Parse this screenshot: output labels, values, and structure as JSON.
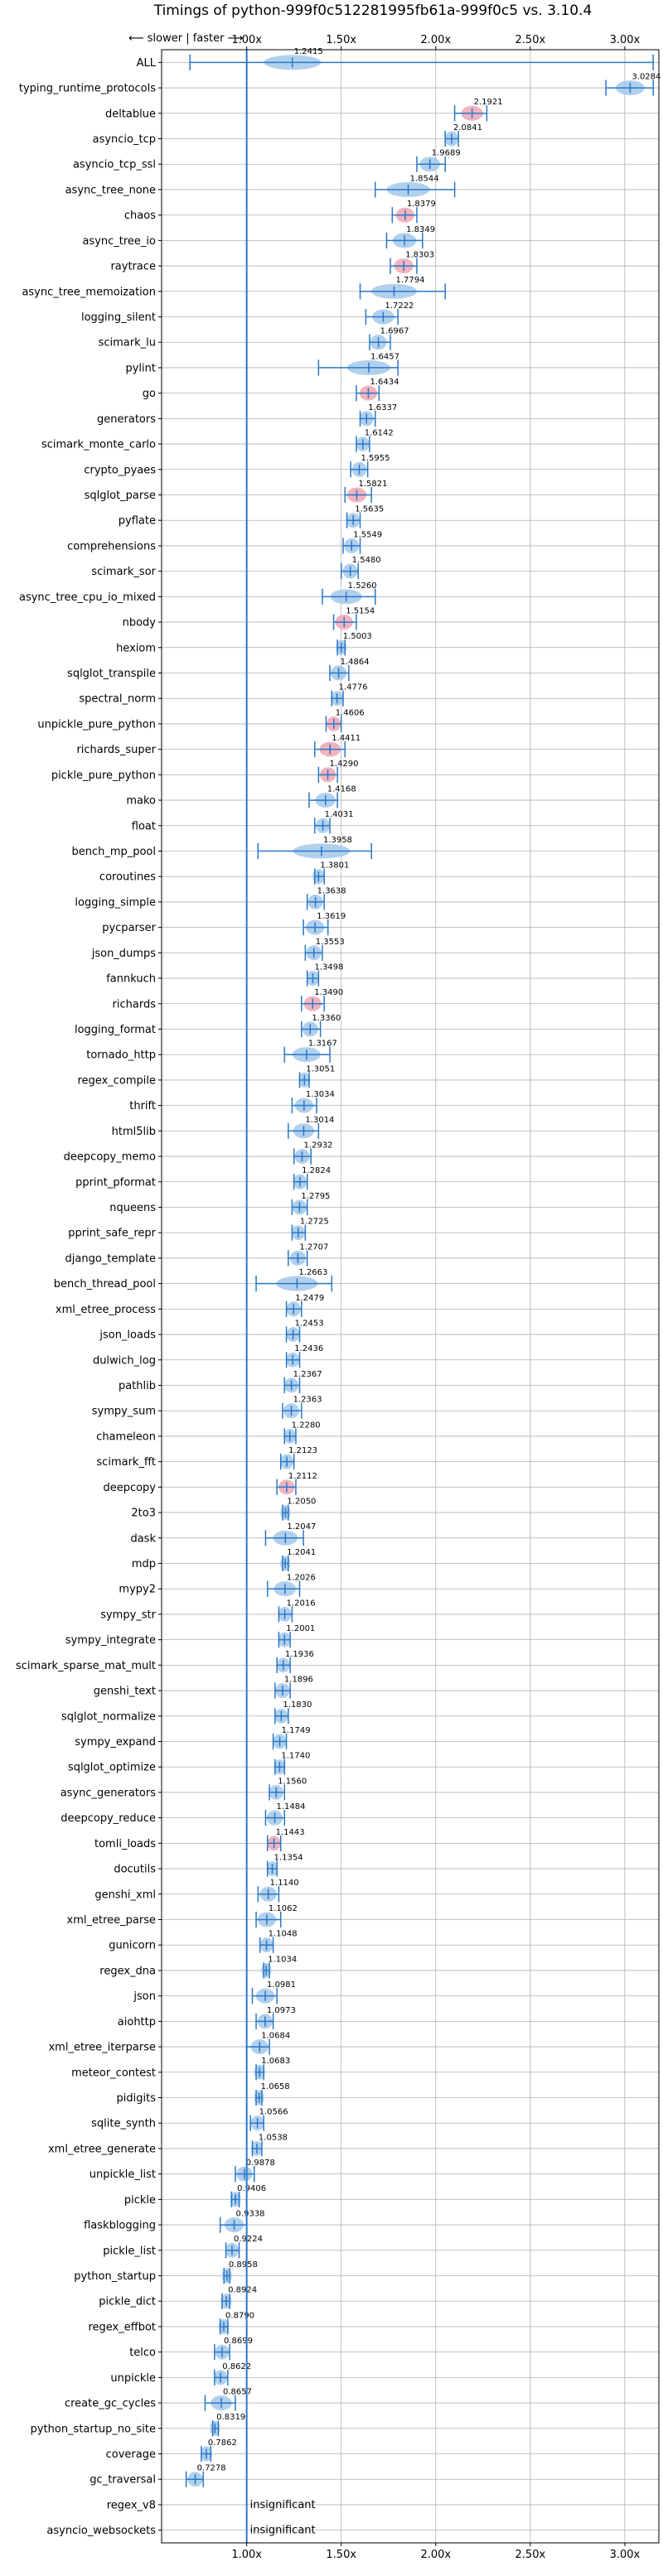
{
  "chart_data": {
    "type": "violin",
    "title": "Timings of python-999f0c512281995fb61a-999f0c5 vs. 3.10.4",
    "direction_label": "⟵ slower | faster ⟶",
    "xlim": [
      0.55,
      3.18
    ],
    "xticks": [
      1.0,
      1.5,
      2.0,
      2.5,
      3.0
    ],
    "xtick_labels": [
      "1.00x",
      "1.50x",
      "2.00x",
      "2.50x",
      "3.00x"
    ],
    "reference_line": 1.0,
    "colors": {
      "significant": "#2978c8",
      "violin_fill": "#a3c8ea",
      "slower_fill": "#f1a6b4",
      "grid": "#b0b0b0"
    },
    "benchmarks": [
      {
        "name": "ALL",
        "value": 1.2415,
        "label": "1.2415",
        "wl": 0.7,
        "wh": 3.15,
        "slow": false
      },
      {
        "name": "typing_runtime_protocols",
        "value": 3.0284,
        "label": "3.0284",
        "wl": 2.9,
        "wh": 3.15,
        "slow": false
      },
      {
        "name": "deltablue",
        "value": 2.1921,
        "label": "2.1921",
        "wl": 2.1,
        "wh": 2.27,
        "slow": true
      },
      {
        "name": "asyncio_tcp",
        "value": 2.0841,
        "label": "2.0841",
        "wl": 2.05,
        "wh": 2.12,
        "slow": false
      },
      {
        "name": "asyncio_tcp_ssl",
        "value": 1.9689,
        "label": "1.9689",
        "wl": 1.9,
        "wh": 2.05,
        "slow": false
      },
      {
        "name": "async_tree_none",
        "value": 1.8544,
        "label": "1.8544",
        "wl": 1.68,
        "wh": 2.1,
        "slow": false
      },
      {
        "name": "chaos",
        "value": 1.8379,
        "label": "1.8379",
        "wl": 1.77,
        "wh": 1.9,
        "slow": true
      },
      {
        "name": "async_tree_io",
        "value": 1.8349,
        "label": "1.8349",
        "wl": 1.74,
        "wh": 1.93,
        "slow": false
      },
      {
        "name": "raytrace",
        "value": 1.8303,
        "label": "1.8303",
        "wl": 1.76,
        "wh": 1.9,
        "slow": true
      },
      {
        "name": "async_tree_memoization",
        "value": 1.7794,
        "label": "1.7794",
        "wl": 1.6,
        "wh": 2.05,
        "slow": false
      },
      {
        "name": "logging_silent",
        "value": 1.7222,
        "label": "1.7222",
        "wl": 1.63,
        "wh": 1.8,
        "slow": false
      },
      {
        "name": "scimark_lu",
        "value": 1.6967,
        "label": "1.6967",
        "wl": 1.65,
        "wh": 1.76,
        "slow": false
      },
      {
        "name": "pylint",
        "value": 1.6457,
        "label": "1.6457",
        "wl": 1.38,
        "wh": 1.8,
        "slow": false
      },
      {
        "name": "go",
        "value": 1.6434,
        "label": "1.6434",
        "wl": 1.58,
        "wh": 1.7,
        "slow": true
      },
      {
        "name": "generators",
        "value": 1.6337,
        "label": "1.6337",
        "wl": 1.6,
        "wh": 1.68,
        "slow": false
      },
      {
        "name": "scimark_monte_carlo",
        "value": 1.6142,
        "label": "1.6142",
        "wl": 1.58,
        "wh": 1.65,
        "slow": false
      },
      {
        "name": "crypto_pyaes",
        "value": 1.5955,
        "label": "1.5955",
        "wl": 1.55,
        "wh": 1.64,
        "slow": false
      },
      {
        "name": "sqlglot_parse",
        "value": 1.5821,
        "label": "1.5821",
        "wl": 1.52,
        "wh": 1.66,
        "slow": true
      },
      {
        "name": "pyflate",
        "value": 1.5635,
        "label": "1.5635",
        "wl": 1.53,
        "wh": 1.6,
        "slow": false
      },
      {
        "name": "comprehensions",
        "value": 1.5549,
        "label": "1.5549",
        "wl": 1.51,
        "wh": 1.6,
        "slow": false
      },
      {
        "name": "scimark_sor",
        "value": 1.548,
        "label": "1.5480",
        "wl": 1.5,
        "wh": 1.59,
        "slow": false
      },
      {
        "name": "async_tree_cpu_io_mixed",
        "value": 1.526,
        "label": "1.5260",
        "wl": 1.4,
        "wh": 1.68,
        "slow": false
      },
      {
        "name": "nbody",
        "value": 1.5154,
        "label": "1.5154",
        "wl": 1.46,
        "wh": 1.58,
        "slow": true
      },
      {
        "name": "hexiom",
        "value": 1.5003,
        "label": "1.5003",
        "wl": 1.48,
        "wh": 1.52,
        "slow": false
      },
      {
        "name": "sqlglot_transpile",
        "value": 1.4864,
        "label": "1.4864",
        "wl": 1.44,
        "wh": 1.54,
        "slow": false
      },
      {
        "name": "spectral_norm",
        "value": 1.4776,
        "label": "1.4776",
        "wl": 1.45,
        "wh": 1.51,
        "slow": false
      },
      {
        "name": "unpickle_pure_python",
        "value": 1.4606,
        "label": "1.4606",
        "wl": 1.42,
        "wh": 1.5,
        "slow": true
      },
      {
        "name": "richards_super",
        "value": 1.4411,
        "label": "1.4411",
        "wl": 1.36,
        "wh": 1.52,
        "slow": true
      },
      {
        "name": "pickle_pure_python",
        "value": 1.429,
        "label": "1.4290",
        "wl": 1.38,
        "wh": 1.48,
        "slow": true
      },
      {
        "name": "mako",
        "value": 1.4168,
        "label": "1.4168",
        "wl": 1.33,
        "wh": 1.48,
        "slow": false
      },
      {
        "name": "float",
        "value": 1.4031,
        "label": "1.4031",
        "wl": 1.36,
        "wh": 1.44,
        "slow": false
      },
      {
        "name": "bench_mp_pool",
        "value": 1.3958,
        "label": "1.3958",
        "wl": 1.06,
        "wh": 1.66,
        "slow": false
      },
      {
        "name": "coroutines",
        "value": 1.3801,
        "label": "1.3801",
        "wl": 1.36,
        "wh": 1.41,
        "slow": false
      },
      {
        "name": "logging_simple",
        "value": 1.3638,
        "label": "1.3638",
        "wl": 1.32,
        "wh": 1.41,
        "slow": false
      },
      {
        "name": "pycparser",
        "value": 1.3619,
        "label": "1.3619",
        "wl": 1.3,
        "wh": 1.43,
        "slow": false
      },
      {
        "name": "json_dumps",
        "value": 1.3553,
        "label": "1.3553",
        "wl": 1.31,
        "wh": 1.4,
        "slow": false
      },
      {
        "name": "fannkuch",
        "value": 1.3498,
        "label": "1.3498",
        "wl": 1.32,
        "wh": 1.38,
        "slow": false
      },
      {
        "name": "richards",
        "value": 1.349,
        "label": "1.3490",
        "wl": 1.29,
        "wh": 1.41,
        "slow": true
      },
      {
        "name": "logging_format",
        "value": 1.336,
        "label": "1.3360",
        "wl": 1.29,
        "wh": 1.39,
        "slow": false
      },
      {
        "name": "tornado_http",
        "value": 1.3167,
        "label": "1.3167",
        "wl": 1.2,
        "wh": 1.44,
        "slow": false
      },
      {
        "name": "regex_compile",
        "value": 1.3051,
        "label": "1.3051",
        "wl": 1.28,
        "wh": 1.33,
        "slow": false
      },
      {
        "name": "thrift",
        "value": 1.3034,
        "label": "1.3034",
        "wl": 1.24,
        "wh": 1.37,
        "slow": false
      },
      {
        "name": "html5lib",
        "value": 1.3014,
        "label": "1.3014",
        "wl": 1.22,
        "wh": 1.38,
        "slow": false
      },
      {
        "name": "deepcopy_memo",
        "value": 1.2932,
        "label": "1.2932",
        "wl": 1.25,
        "wh": 1.34,
        "slow": false
      },
      {
        "name": "pprint_pformat",
        "value": 1.2824,
        "label": "1.2824",
        "wl": 1.25,
        "wh": 1.32,
        "slow": false
      },
      {
        "name": "nqueens",
        "value": 1.2795,
        "label": "1.2795",
        "wl": 1.24,
        "wh": 1.32,
        "slow": false
      },
      {
        "name": "pprint_safe_repr",
        "value": 1.2725,
        "label": "1.2725",
        "wl": 1.24,
        "wh": 1.31,
        "slow": false
      },
      {
        "name": "django_template",
        "value": 1.2707,
        "label": "1.2707",
        "wl": 1.22,
        "wh": 1.32,
        "slow": false
      },
      {
        "name": "bench_thread_pool",
        "value": 1.2663,
        "label": "1.2663",
        "wl": 1.05,
        "wh": 1.45,
        "slow": false
      },
      {
        "name": "xml_etree_process",
        "value": 1.2479,
        "label": "1.2479",
        "wl": 1.21,
        "wh": 1.29,
        "slow": false
      },
      {
        "name": "json_loads",
        "value": 1.2453,
        "label": "1.2453",
        "wl": 1.21,
        "wh": 1.28,
        "slow": false
      },
      {
        "name": "dulwich_log",
        "value": 1.2436,
        "label": "1.2436",
        "wl": 1.21,
        "wh": 1.28,
        "slow": false
      },
      {
        "name": "pathlib",
        "value": 1.2367,
        "label": "1.2367",
        "wl": 1.2,
        "wh": 1.28,
        "slow": false
      },
      {
        "name": "sympy_sum",
        "value": 1.2363,
        "label": "1.2363",
        "wl": 1.19,
        "wh": 1.29,
        "slow": false
      },
      {
        "name": "chameleon",
        "value": 1.228,
        "label": "1.2280",
        "wl": 1.2,
        "wh": 1.26,
        "slow": false
      },
      {
        "name": "scimark_fft",
        "value": 1.2123,
        "label": "1.2123",
        "wl": 1.18,
        "wh": 1.25,
        "slow": false
      },
      {
        "name": "deepcopy",
        "value": 1.2112,
        "label": "1.2112",
        "wl": 1.16,
        "wh": 1.26,
        "slow": true
      },
      {
        "name": "2to3",
        "value": 1.205,
        "label": "1.2050",
        "wl": 1.19,
        "wh": 1.22,
        "slow": false
      },
      {
        "name": "dask",
        "value": 1.2047,
        "label": "1.2047",
        "wl": 1.1,
        "wh": 1.3,
        "slow": false
      },
      {
        "name": "mdp",
        "value": 1.2041,
        "label": "1.2041",
        "wl": 1.19,
        "wh": 1.22,
        "slow": false
      },
      {
        "name": "mypy2",
        "value": 1.2026,
        "label": "1.2026",
        "wl": 1.11,
        "wh": 1.28,
        "slow": false
      },
      {
        "name": "sympy_str",
        "value": 1.2016,
        "label": "1.2016",
        "wl": 1.17,
        "wh": 1.24,
        "slow": false
      },
      {
        "name": "sympy_integrate",
        "value": 1.2001,
        "label": "1.2001",
        "wl": 1.17,
        "wh": 1.23,
        "slow": false
      },
      {
        "name": "scimark_sparse_mat_mult",
        "value": 1.1936,
        "label": "1.1936",
        "wl": 1.16,
        "wh": 1.23,
        "slow": false
      },
      {
        "name": "genshi_text",
        "value": 1.1896,
        "label": "1.1896",
        "wl": 1.15,
        "wh": 1.23,
        "slow": false
      },
      {
        "name": "sqlglot_normalize",
        "value": 1.183,
        "label": "1.1830",
        "wl": 1.15,
        "wh": 1.22,
        "slow": false
      },
      {
        "name": "sympy_expand",
        "value": 1.1749,
        "label": "1.1749",
        "wl": 1.14,
        "wh": 1.21,
        "slow": false
      },
      {
        "name": "sqlglot_optimize",
        "value": 1.174,
        "label": "1.1740",
        "wl": 1.15,
        "wh": 1.2,
        "slow": false
      },
      {
        "name": "async_generators",
        "value": 1.156,
        "label": "1.1560",
        "wl": 1.12,
        "wh": 1.2,
        "slow": false
      },
      {
        "name": "deepcopy_reduce",
        "value": 1.1484,
        "label": "1.1484",
        "wl": 1.1,
        "wh": 1.2,
        "slow": false
      },
      {
        "name": "tomli_loads",
        "value": 1.1443,
        "label": "1.1443",
        "wl": 1.11,
        "wh": 1.18,
        "slow": true
      },
      {
        "name": "docutils",
        "value": 1.1354,
        "label": "1.1354",
        "wl": 1.11,
        "wh": 1.16,
        "slow": false
      },
      {
        "name": "genshi_xml",
        "value": 1.114,
        "label": "1.1140",
        "wl": 1.06,
        "wh": 1.17,
        "slow": false
      },
      {
        "name": "xml_etree_parse",
        "value": 1.1062,
        "label": "1.1062",
        "wl": 1.05,
        "wh": 1.18,
        "slow": false
      },
      {
        "name": "gunicorn",
        "value": 1.1048,
        "label": "1.1048",
        "wl": 1.07,
        "wh": 1.14,
        "slow": false
      },
      {
        "name": "regex_dna",
        "value": 1.1034,
        "label": "1.1034",
        "wl": 1.09,
        "wh": 1.12,
        "slow": false
      },
      {
        "name": "json",
        "value": 1.0981,
        "label": "1.0981",
        "wl": 1.03,
        "wh": 1.16,
        "slow": false
      },
      {
        "name": "aiohttp",
        "value": 1.0973,
        "label": "1.0973",
        "wl": 1.05,
        "wh": 1.14,
        "slow": false
      },
      {
        "name": "xml_etree_iterparse",
        "value": 1.0684,
        "label": "1.0684",
        "wl": 1.0,
        "wh": 1.12,
        "slow": false
      },
      {
        "name": "meteor_contest",
        "value": 1.0683,
        "label": "1.0683",
        "wl": 1.05,
        "wh": 1.09,
        "slow": false
      },
      {
        "name": "pidigits",
        "value": 1.0658,
        "label": "1.0658",
        "wl": 1.05,
        "wh": 1.08,
        "slow": false
      },
      {
        "name": "sqlite_synth",
        "value": 1.0566,
        "label": "1.0566",
        "wl": 1.02,
        "wh": 1.09,
        "slow": false
      },
      {
        "name": "xml_etree_generate",
        "value": 1.0538,
        "label": "1.0538",
        "wl": 1.03,
        "wh": 1.08,
        "slow": false
      },
      {
        "name": "unpickle_list",
        "value": 0.9878,
        "label": "0.9878",
        "wl": 0.94,
        "wh": 1.04,
        "slow": false
      },
      {
        "name": "pickle",
        "value": 0.9406,
        "label": "0.9406",
        "wl": 0.92,
        "wh": 0.96,
        "slow": false
      },
      {
        "name": "flaskblogging",
        "value": 0.9338,
        "label": "0.9338",
        "wl": 0.86,
        "wh": 1.0,
        "slow": false
      },
      {
        "name": "pickle_list",
        "value": 0.9224,
        "label": "0.9224",
        "wl": 0.89,
        "wh": 0.96,
        "slow": false
      },
      {
        "name": "python_startup",
        "value": 0.8958,
        "label": "0.8958",
        "wl": 0.88,
        "wh": 0.91,
        "slow": false
      },
      {
        "name": "pickle_dict",
        "value": 0.8924,
        "label": "0.8924",
        "wl": 0.87,
        "wh": 0.91,
        "slow": false
      },
      {
        "name": "regex_effbot",
        "value": 0.879,
        "label": "0.8790",
        "wl": 0.86,
        "wh": 0.9,
        "slow": false
      },
      {
        "name": "telco",
        "value": 0.8699,
        "label": "0.8699",
        "wl": 0.83,
        "wh": 0.91,
        "slow": false
      },
      {
        "name": "unpickle",
        "value": 0.8622,
        "label": "0.8622",
        "wl": 0.83,
        "wh": 0.9,
        "slow": false
      },
      {
        "name": "create_gc_cycles",
        "value": 0.8657,
        "label": "0.8657",
        "wl": 0.78,
        "wh": 0.94,
        "slow": false
      },
      {
        "name": "python_startup_no_site",
        "value": 0.8319,
        "label": "0.8319",
        "wl": 0.82,
        "wh": 0.85,
        "slow": false
      },
      {
        "name": "coverage",
        "value": 0.7862,
        "label": "0.7862",
        "wl": 0.76,
        "wh": 0.81,
        "slow": false
      },
      {
        "name": "gc_traversal",
        "value": 0.7278,
        "label": "0.7278",
        "wl": 0.68,
        "wh": 0.77,
        "slow": false
      },
      {
        "name": "regex_v8",
        "value": null,
        "label": "insignificant",
        "wl": null,
        "wh": null,
        "slow": false
      },
      {
        "name": "asyncio_websockets",
        "value": null,
        "label": "insignificant",
        "wl": null,
        "wh": null,
        "slow": false
      }
    ]
  }
}
